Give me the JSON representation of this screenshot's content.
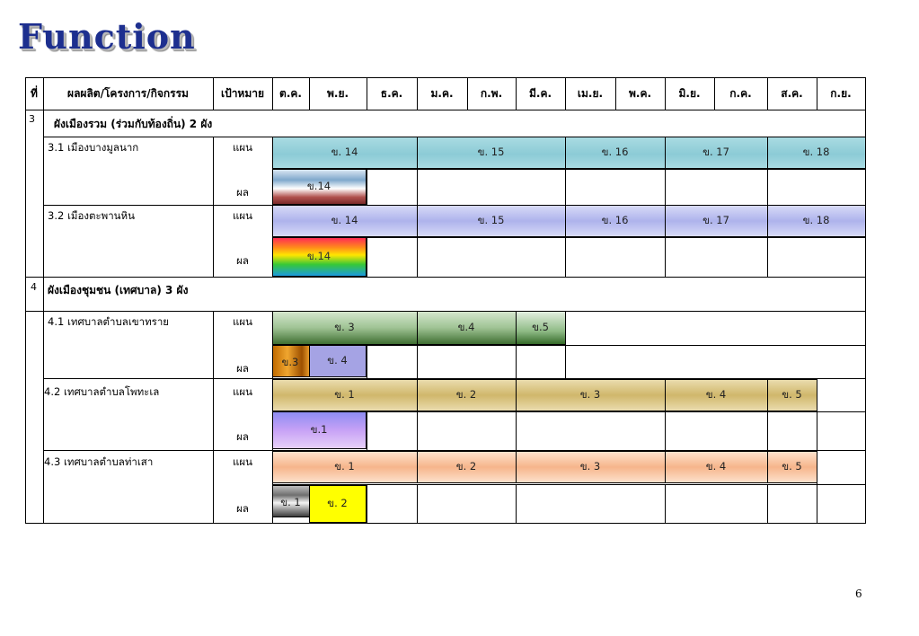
{
  "title": "Function",
  "page_number": "6",
  "table": {
    "headers": {
      "no": "ที่",
      "item": "ผลผลิต/โครงการ/กิจกรรม",
      "target": "เป้าหมาย",
      "months": [
        "ต.ค.",
        "พ.ย.",
        "ธ.ค.",
        "ม.ค.",
        "ก.พ.",
        "มี.ค.",
        "เม.ย.",
        "พ.ค.",
        "มิ.ย.",
        "ก.ค.",
        "ส.ค.",
        "ก.ย."
      ]
    },
    "plan_label": "แผน",
    "result_label": "ผล",
    "sections": [
      {
        "no": "3",
        "title": "ผังเมืองรวม (ร่วมกับท้องถิ่น)  2  ผัง",
        "items": [
          {
            "label": "3.1  เมืองบางมูลนาก",
            "plan": [
              "ข. 14",
              "ข. 15",
              "ข. 16",
              "ข. 17",
              "ข. 18"
            ],
            "result": [
              "ข.14"
            ]
          },
          {
            "label": "3.2  เมืองตะพานหิน",
            "plan": [
              "ข. 14",
              "ข. 15",
              "ข. 16",
              "ข. 17",
              "ข. 18"
            ],
            "result": [
              "ข.14"
            ]
          }
        ]
      },
      {
        "no": "4",
        "title": "ผังเมืองชุมชน (เทศบาล)   3  ผัง",
        "items": [
          {
            "label": "4.1 เทศบาลตำบลเขาทราย",
            "plan": [
              "ข. 3",
              "ข.4",
              "ข.5"
            ],
            "result": [
              "ข.3",
              "ข. 4"
            ]
          },
          {
            "label": "4.2 เทศบาลตำบลโพทะเล",
            "plan": [
              "ข. 1",
              "ข. 2",
              "ข. 3",
              "ข. 4",
              "ข. 5"
            ],
            "result": [
              "ข.1"
            ]
          },
          {
            "label": "4.3 เทศบาลตำบลท่าเสา",
            "plan": [
              "ข. 1",
              "ข. 2",
              "ข. 3",
              "ข. 4",
              "ข. 5"
            ],
            "result": [
              "ข. 1",
              "ข. 2"
            ]
          }
        ]
      }
    ]
  }
}
